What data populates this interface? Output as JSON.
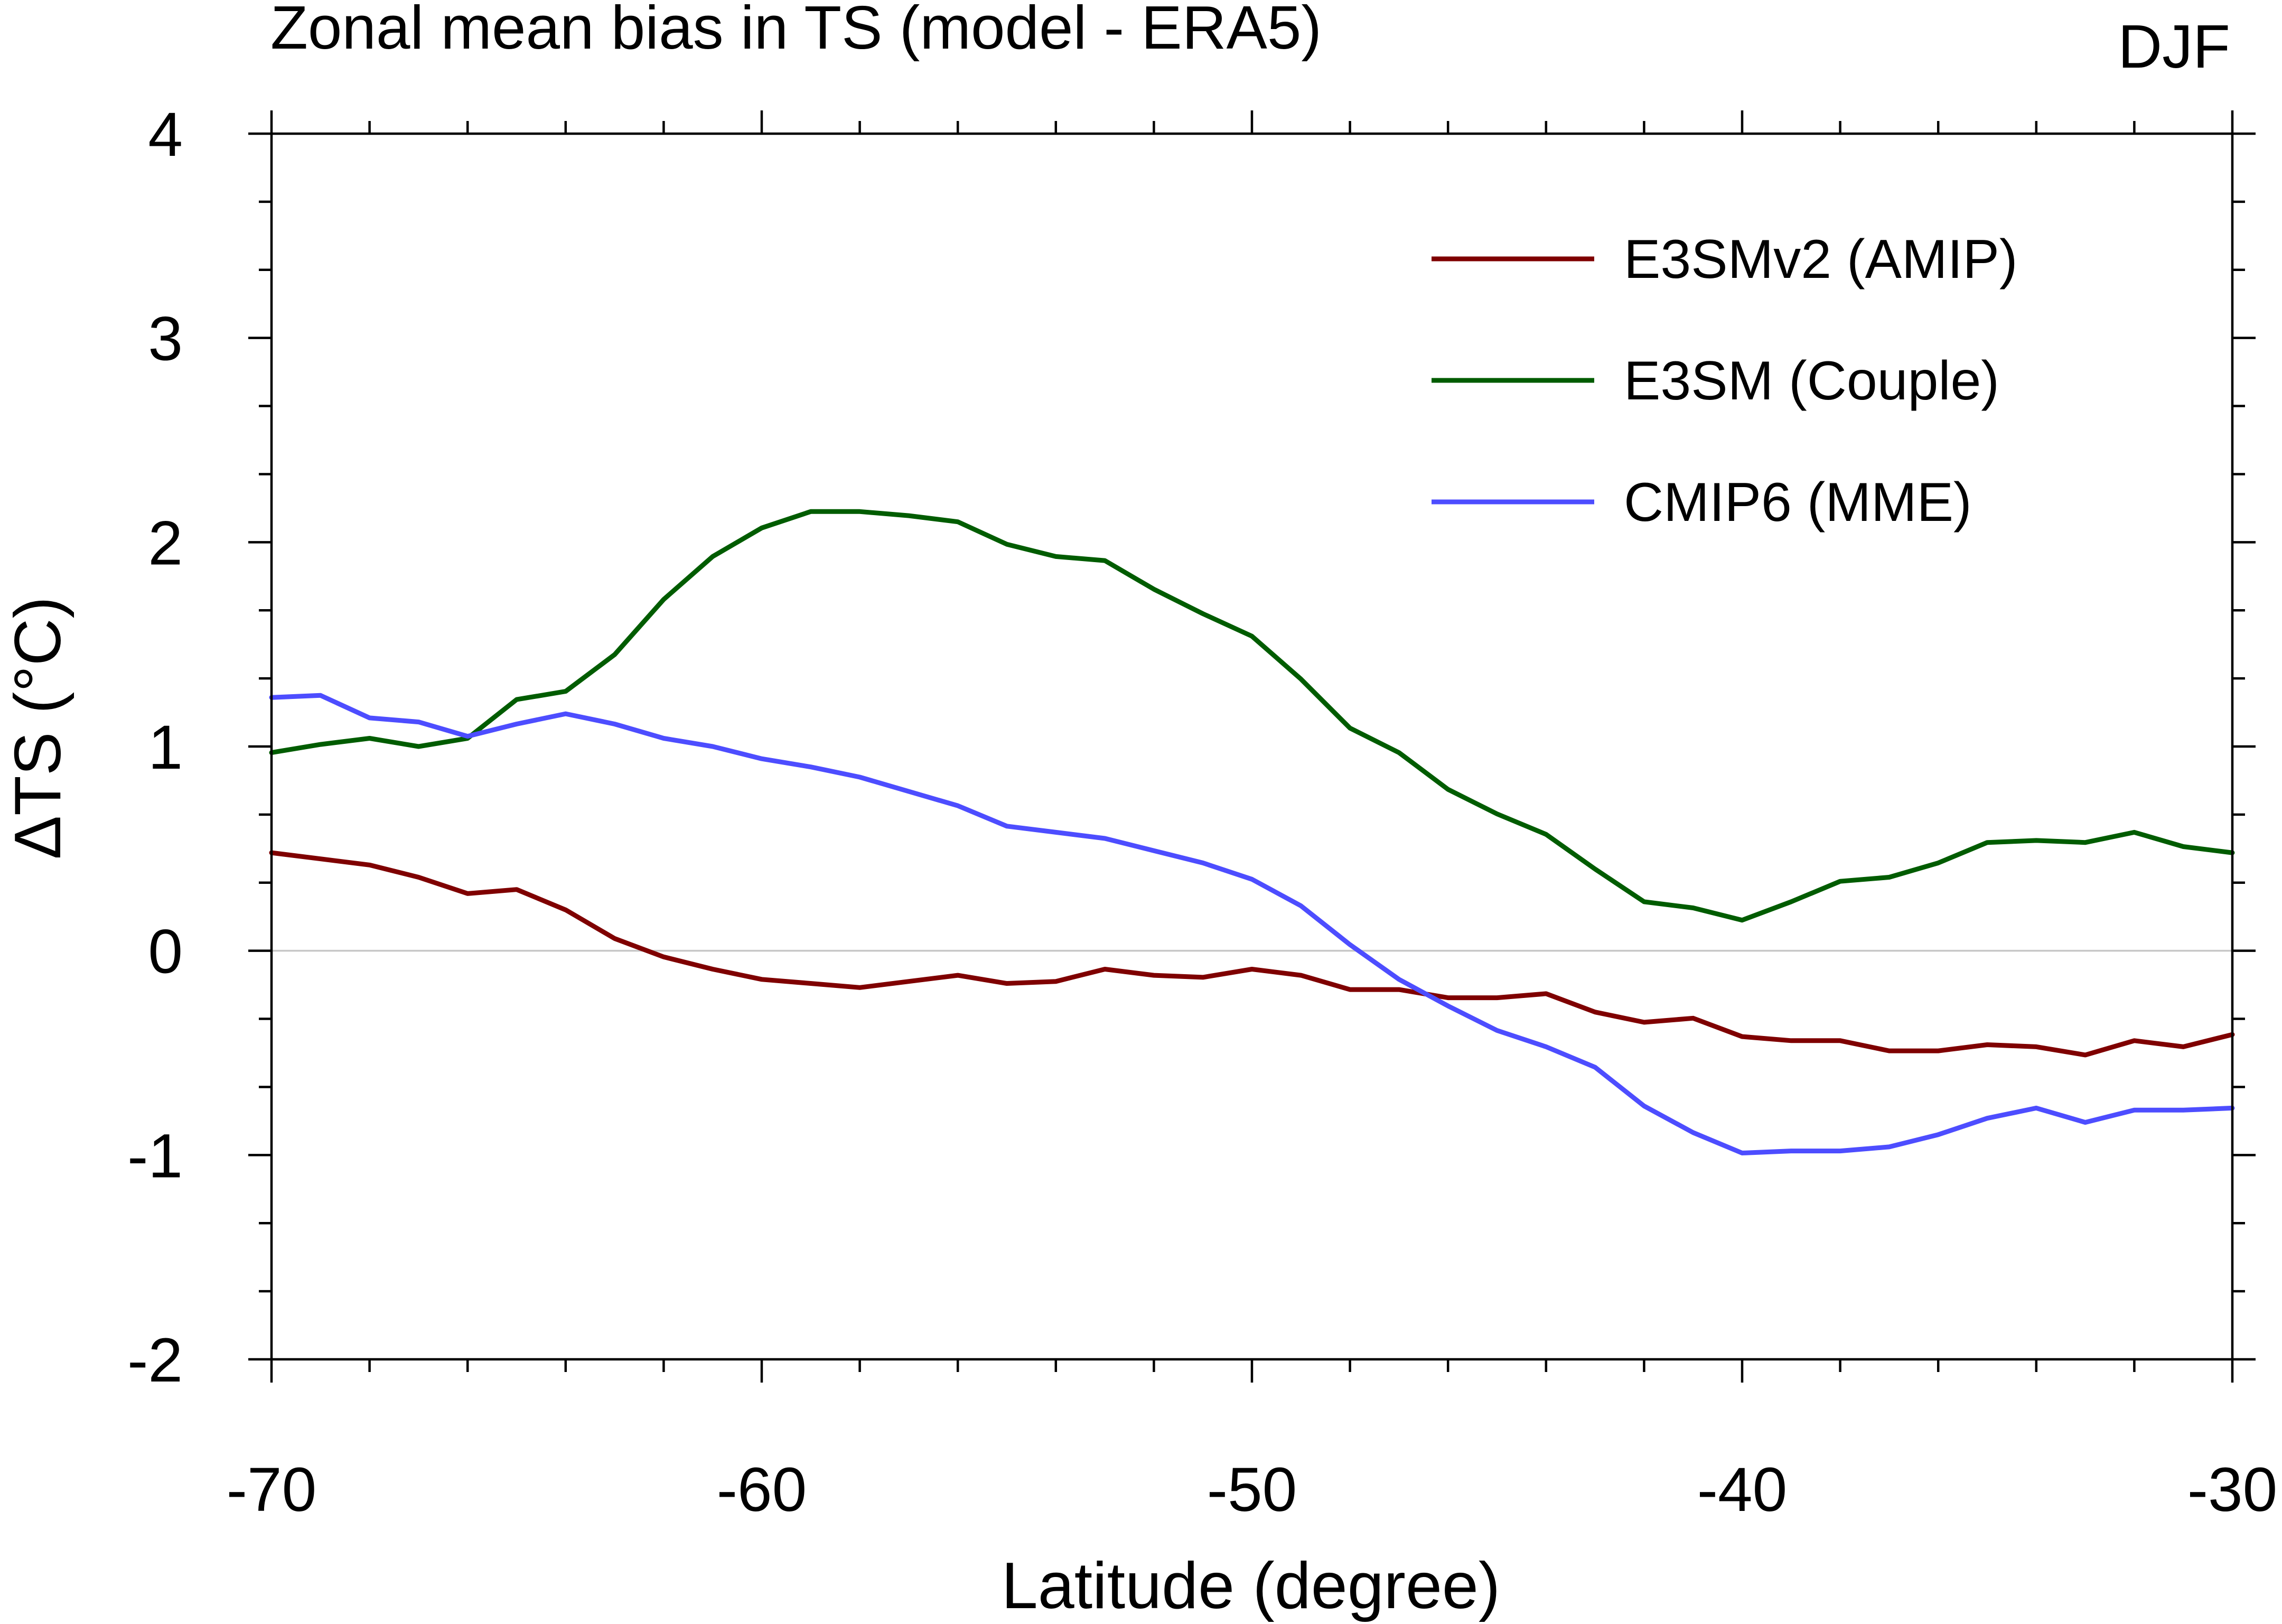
{
  "chart_data": {
    "type": "line",
    "title": "Zonal mean bias in TS (model - ERA5)",
    "season": "DJF",
    "xlabel": "Latitude (degree)",
    "ylabel": "ΔTS (°C)",
    "xlim": [
      -70,
      -30
    ],
    "ylim": [
      -2,
      4
    ],
    "x_ticks": [
      -70,
      -60,
      -50,
      -40,
      -30
    ],
    "x_tick_labels": [
      "-70",
      "-60",
      "-50",
      "-40",
      "-30"
    ],
    "y_ticks": [
      -2,
      -1,
      0,
      1,
      2,
      3,
      4
    ],
    "y_tick_labels": [
      "-2",
      "-1",
      "0",
      "1",
      "2",
      "3",
      "4"
    ],
    "x_minor_step": 2,
    "y_minor_step": 0.333333,
    "zero_line": true,
    "legend_position": "top-right",
    "x": [
      -70,
      -69,
      -68,
      -67,
      -66,
      -65,
      -64,
      -63,
      -62,
      -61,
      -60,
      -59,
      -58,
      -57,
      -56,
      -55,
      -54,
      -53,
      -52,
      -51,
      -50,
      -49,
      -48,
      -47,
      -46,
      -45,
      -44,
      -43,
      -42,
      -41,
      -40,
      -39,
      -38,
      -37,
      -36,
      -35,
      -34,
      -33,
      -32,
      -31,
      -30
    ],
    "series": [
      {
        "name": "E3SMv2 (AMIP)",
        "color": "#7f0000",
        "values": [
          0.48,
          0.45,
          0.42,
          0.36,
          0.28,
          0.3,
          0.2,
          0.06,
          -0.03,
          -0.09,
          -0.14,
          -0.16,
          -0.18,
          -0.15,
          -0.12,
          -0.16,
          -0.15,
          -0.09,
          -0.12,
          -0.13,
          -0.09,
          -0.12,
          -0.19,
          -0.19,
          -0.23,
          -0.23,
          -0.21,
          -0.3,
          -0.35,
          -0.33,
          -0.42,
          -0.44,
          -0.44,
          -0.49,
          -0.49,
          -0.46,
          -0.47,
          -0.51,
          -0.44,
          -0.47,
          -0.41
        ]
      },
      {
        "name": "E3SM (Couple)",
        "color": "#005c00",
        "values": [
          0.97,
          1.01,
          1.04,
          1.0,
          1.04,
          1.23,
          1.27,
          1.45,
          1.72,
          1.93,
          2.07,
          2.15,
          2.15,
          2.13,
          2.1,
          1.99,
          1.93,
          1.91,
          1.77,
          1.65,
          1.54,
          1.33,
          1.09,
          0.97,
          0.79,
          0.67,
          0.57,
          0.4,
          0.24,
          0.21,
          0.15,
          0.24,
          0.34,
          0.36,
          0.43,
          0.53,
          0.54,
          0.53,
          0.58,
          0.51,
          0.48
        ]
      },
      {
        "name": "CMIP6 (MME)",
        "color": "#4d4dff",
        "values": [
          1.24,
          1.25,
          1.14,
          1.12,
          1.05,
          1.11,
          1.16,
          1.11,
          1.04,
          1.0,
          0.94,
          0.9,
          0.85,
          0.78,
          0.71,
          0.61,
          0.58,
          0.55,
          0.49,
          0.43,
          0.35,
          0.22,
          0.03,
          -0.14,
          -0.27,
          -0.39,
          -0.47,
          -0.57,
          -0.76,
          -0.89,
          -0.99,
          -0.98,
          -0.98,
          -0.96,
          -0.9,
          -0.82,
          -0.77,
          -0.84,
          -0.78,
          -0.78,
          -0.77
        ]
      }
    ]
  }
}
